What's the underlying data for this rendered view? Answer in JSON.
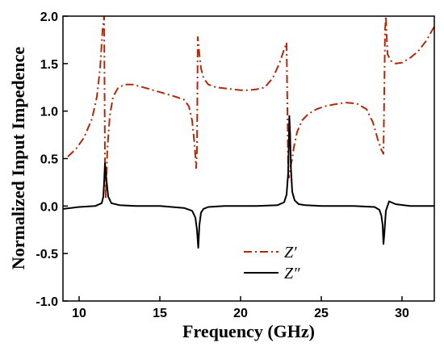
{
  "chart_data": {
    "type": "line",
    "title": "",
    "xlabel": "Frequency (GHz)",
    "ylabel": "Normalized Input Impedence",
    "xlim": [
      9,
      32
    ],
    "ylim": [
      -1.0,
      2.0
    ],
    "xticks": [
      10,
      15,
      20,
      25,
      30
    ],
    "xtick_labels": [
      "10",
      "15",
      "20",
      "25",
      "30"
    ],
    "yticks": [
      -1.0,
      -0.5,
      0.0,
      0.5,
      1.0,
      1.5,
      2.0
    ],
    "ytick_labels": [
      "-1.0",
      "-0.5",
      "0.0",
      "0.5",
      "1.0",
      "1.5",
      "2.0"
    ],
    "grid": false,
    "legend_position": "bottom-center",
    "series": [
      {
        "name": "Z′",
        "color": "#b02a0a",
        "line_style": "dash-dot",
        "x": [
          9.3,
          9.8,
          10.3,
          10.8,
          11.1,
          11.3,
          11.45,
          11.55,
          11.6,
          11.65,
          11.75,
          11.9,
          12.1,
          12.4,
          12.8,
          13.3,
          14.0,
          15.0,
          16.0,
          16.5,
          16.8,
          17.0,
          17.15,
          17.25,
          17.3,
          17.35,
          17.45,
          17.55,
          17.7,
          18.0,
          18.5,
          19.0,
          19.5,
          20.0,
          20.5,
          21.0,
          21.5,
          22.0,
          22.4,
          22.7,
          22.85,
          22.95,
          23.0,
          23.1,
          23.2,
          23.3,
          23.5,
          23.8,
          24.2,
          24.7,
          25.2,
          25.8,
          26.5,
          27.2,
          27.8,
          28.2,
          28.5,
          28.7,
          28.85,
          28.95,
          29.0,
          29.1,
          29.3,
          29.6,
          30.0,
          30.5,
          31.0,
          31.5,
          32.0
        ],
        "values": [
          0.52,
          0.6,
          0.72,
          0.92,
          1.15,
          1.45,
          1.85,
          2.0,
          0.5,
          0.08,
          0.6,
          0.95,
          1.15,
          1.24,
          1.28,
          1.28,
          1.25,
          1.2,
          1.15,
          1.12,
          1.05,
          0.9,
          0.65,
          0.4,
          0.6,
          1.78,
          1.6,
          1.45,
          1.35,
          1.28,
          1.25,
          1.24,
          1.23,
          1.22,
          1.22,
          1.23,
          1.25,
          1.35,
          1.5,
          1.65,
          1.72,
          0.35,
          0.3,
          0.42,
          0.5,
          0.62,
          0.78,
          0.9,
          0.97,
          1.02,
          1.05,
          1.07,
          1.09,
          1.08,
          1.02,
          0.88,
          0.7,
          0.6,
          0.55,
          1.85,
          2.0,
          1.6,
          1.53,
          1.5,
          1.51,
          1.56,
          1.63,
          1.74,
          1.89
        ]
      },
      {
        "name": "Z″",
        "color": "#000000",
        "line_style": "solid",
        "x": [
          9.0,
          10.0,
          11.0,
          11.4,
          11.5,
          11.55,
          11.6,
          11.68,
          11.8,
          12.0,
          12.5,
          13.5,
          15.0,
          16.5,
          17.0,
          17.2,
          17.3,
          17.38,
          17.45,
          17.55,
          17.7,
          18.0,
          19.0,
          21.0,
          22.3,
          22.7,
          22.85,
          22.95,
          23.02,
          23.07,
          23.12,
          23.2,
          23.35,
          23.6,
          24.0,
          25.0,
          27.0,
          28.3,
          28.6,
          28.72,
          28.8,
          28.85,
          28.9,
          29.0,
          29.2,
          29.6,
          30.5,
          32.0
        ],
        "values": [
          -0.03,
          -0.01,
          0.0,
          0.03,
          0.1,
          0.25,
          0.45,
          0.3,
          0.1,
          0.03,
          0.01,
          0.0,
          0.0,
          -0.02,
          -0.05,
          -0.12,
          -0.25,
          -0.44,
          -0.2,
          -0.07,
          -0.03,
          -0.01,
          0.0,
          0.0,
          0.01,
          0.04,
          0.12,
          0.35,
          0.95,
          0.75,
          0.4,
          0.15,
          0.06,
          0.02,
          0.01,
          0.0,
          0.0,
          -0.01,
          -0.04,
          -0.1,
          -0.2,
          -0.4,
          -0.3,
          -0.05,
          0.05,
          0.02,
          0.0,
          0.0
        ]
      }
    ]
  }
}
